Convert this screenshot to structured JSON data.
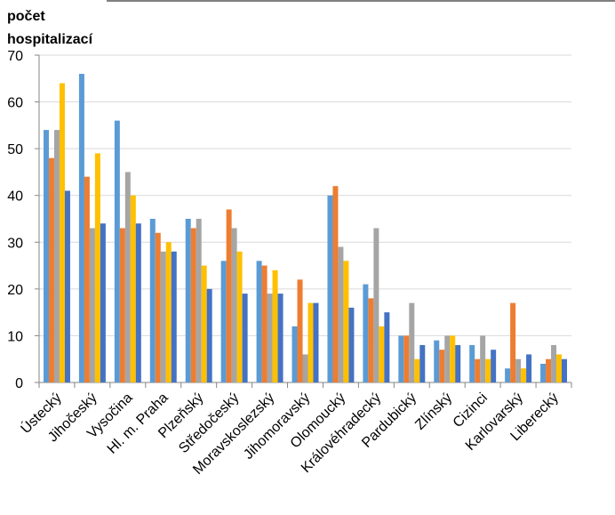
{
  "chart_data": {
    "type": "bar",
    "y_label": "počet hospitalizací",
    "categories": [
      "Ústecký",
      "Jihočeský",
      "Vysočina",
      "Hl. m. Praha",
      "Plzeňský",
      "Středočeský",
      "Moravskoslezský",
      "Jihomoravský",
      "Olomoucký",
      "Královéhradecký",
      "Pardubický",
      "Zlínský",
      "Cizinci",
      "Karlovarský",
      "Liberecký"
    ],
    "series": [
      {
        "color": "#5b9bd5",
        "values": [
          54,
          66,
          56,
          35,
          35,
          26,
          26,
          12,
          40,
          21,
          10,
          9,
          8,
          3,
          4
        ]
      },
      {
        "color": "#ed7d31",
        "values": [
          48,
          44,
          33,
          32,
          33,
          37,
          25,
          22,
          42,
          18,
          10,
          7,
          5,
          17,
          5
        ]
      },
      {
        "color": "#a5a5a5",
        "values": [
          54,
          33,
          45,
          28,
          35,
          33,
          19,
          6,
          29,
          33,
          17,
          10,
          10,
          5,
          8
        ]
      },
      {
        "color": "#ffc000",
        "values": [
          64,
          49,
          40,
          30,
          25,
          28,
          24,
          17,
          26,
          12,
          5,
          10,
          5,
          3,
          6
        ]
      },
      {
        "color": "#4472c4",
        "values": [
          41,
          34,
          34,
          28,
          20,
          19,
          19,
          17,
          16,
          15,
          8,
          8,
          7,
          6,
          5
        ]
      }
    ],
    "ylim": [
      0,
      70
    ],
    "yticks": [
      0,
      10,
      20,
      30,
      40,
      50,
      60,
      70
    ],
    "grid": true
  }
}
